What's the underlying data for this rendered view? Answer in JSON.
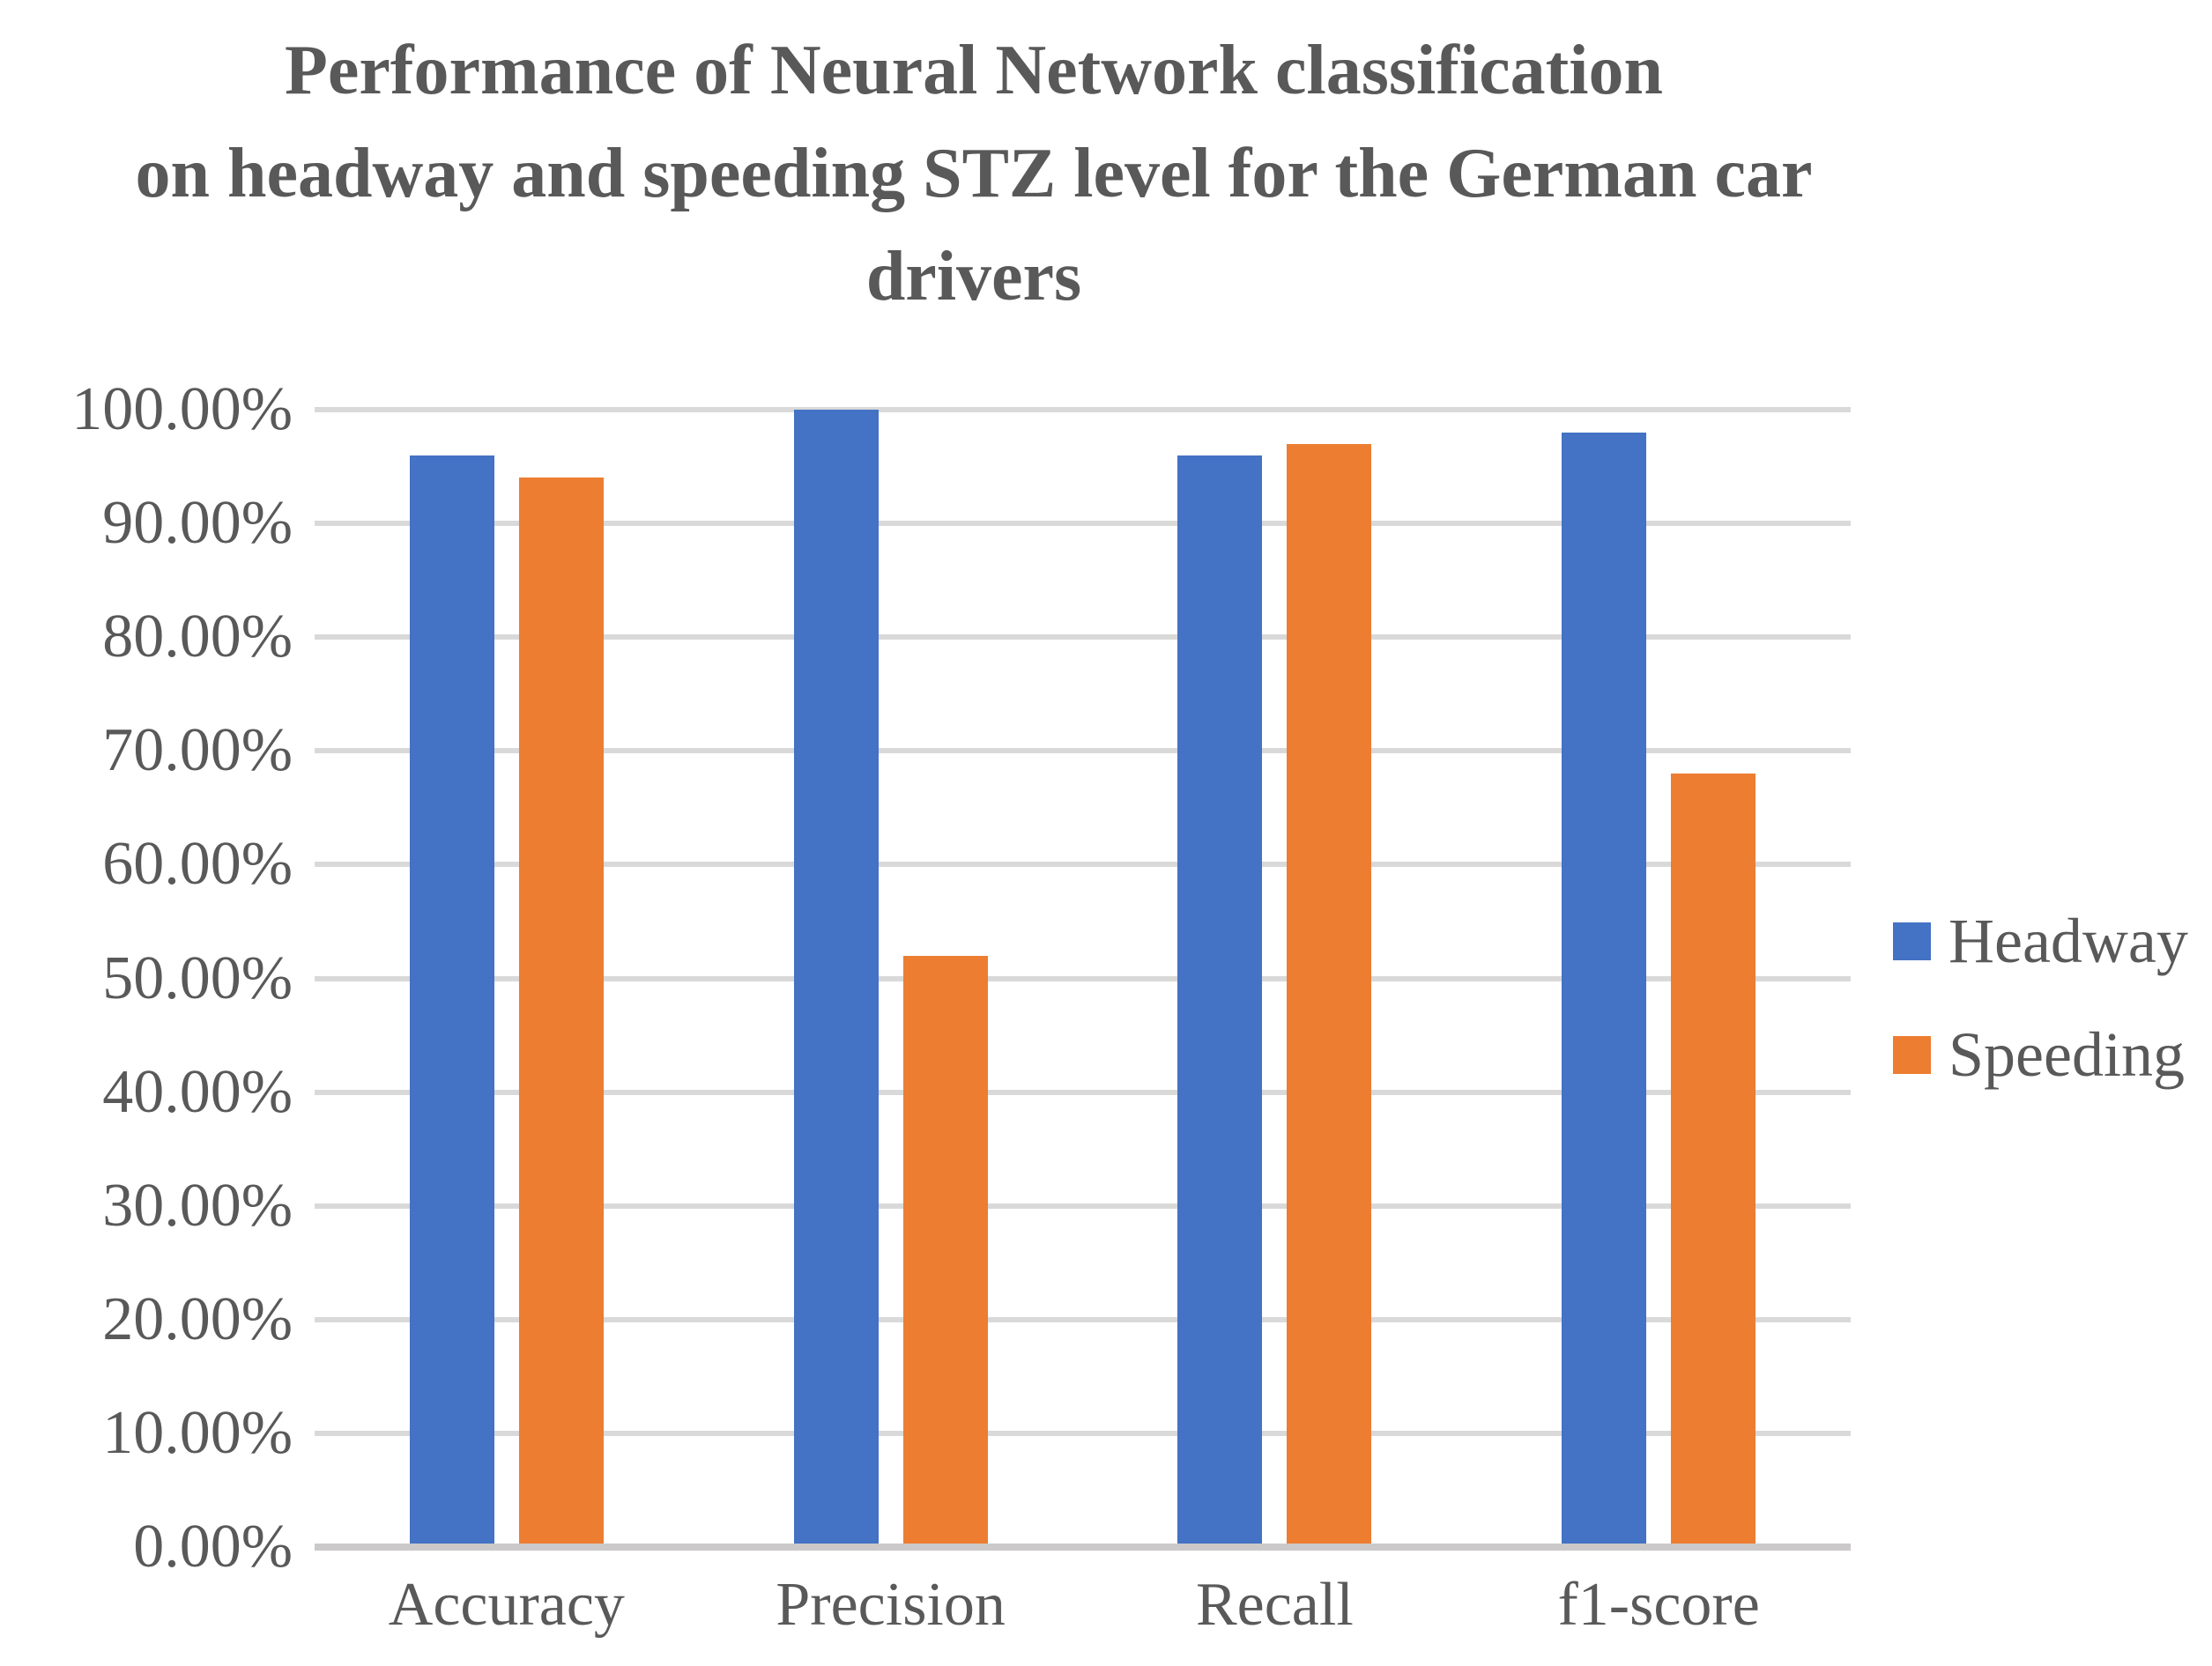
{
  "chart_data": {
    "type": "bar",
    "title": "Performance of Neural Network classification on headway and speeding STZ level for the German car drivers",
    "title_lines": [
      "Performance of Neural Network classification",
      "on headway and speeding STZ level for the German car",
      "drivers"
    ],
    "categories": [
      "Accuracy",
      "Precision",
      "Recall",
      "f1-score"
    ],
    "series": [
      {
        "name": "Headway",
        "color": "#4472c4",
        "values": [
          96,
          100,
          96,
          98
        ]
      },
      {
        "name": "Speeding",
        "color": "#ed7d31",
        "values": [
          94,
          52,
          97,
          68
        ]
      }
    ],
    "y_axis": {
      "min": 0,
      "max": 100,
      "step": 10,
      "tick_labels": [
        "0.00%",
        "10.00%",
        "20.00%",
        "30.00%",
        "40.00%",
        "50.00%",
        "60.00%",
        "70.00%",
        "80.00%",
        "90.00%",
        "100.00%"
      ]
    },
    "grid": true,
    "legend_position": "right",
    "colors": {
      "grid": "#d9d9d9",
      "axis_line": "#cbc9c9",
      "text": "#595959",
      "title": "#595959",
      "background": "#ffffff"
    }
  }
}
